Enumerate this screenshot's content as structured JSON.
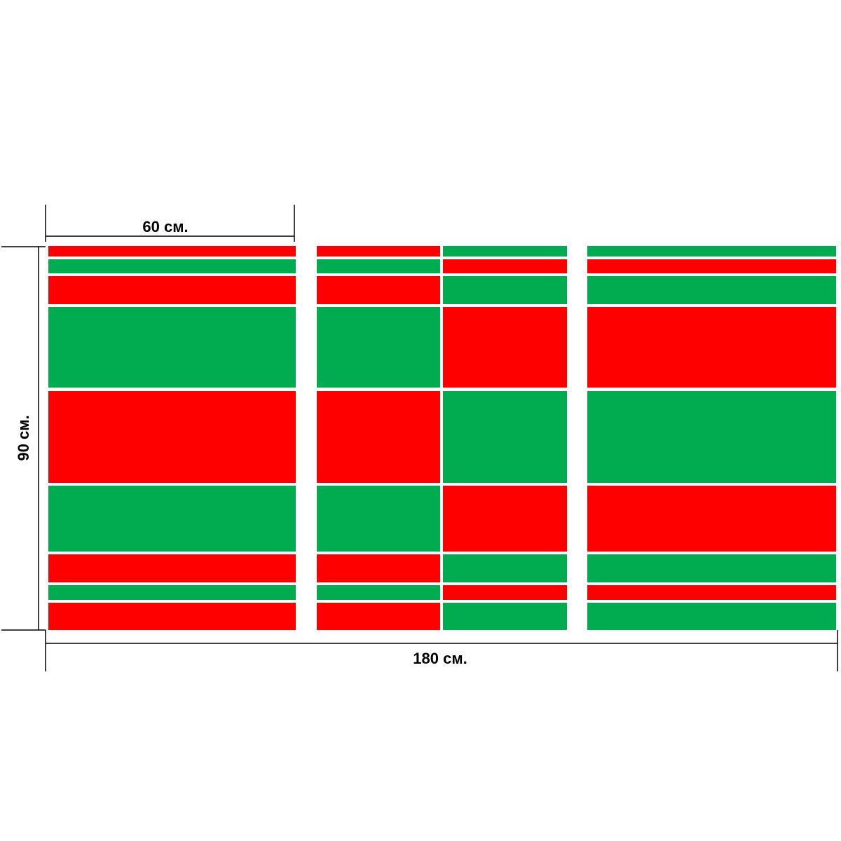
{
  "dimensions": {
    "width_part": "60 см.",
    "height": "90 см.",
    "width_total": "180 см."
  }
}
